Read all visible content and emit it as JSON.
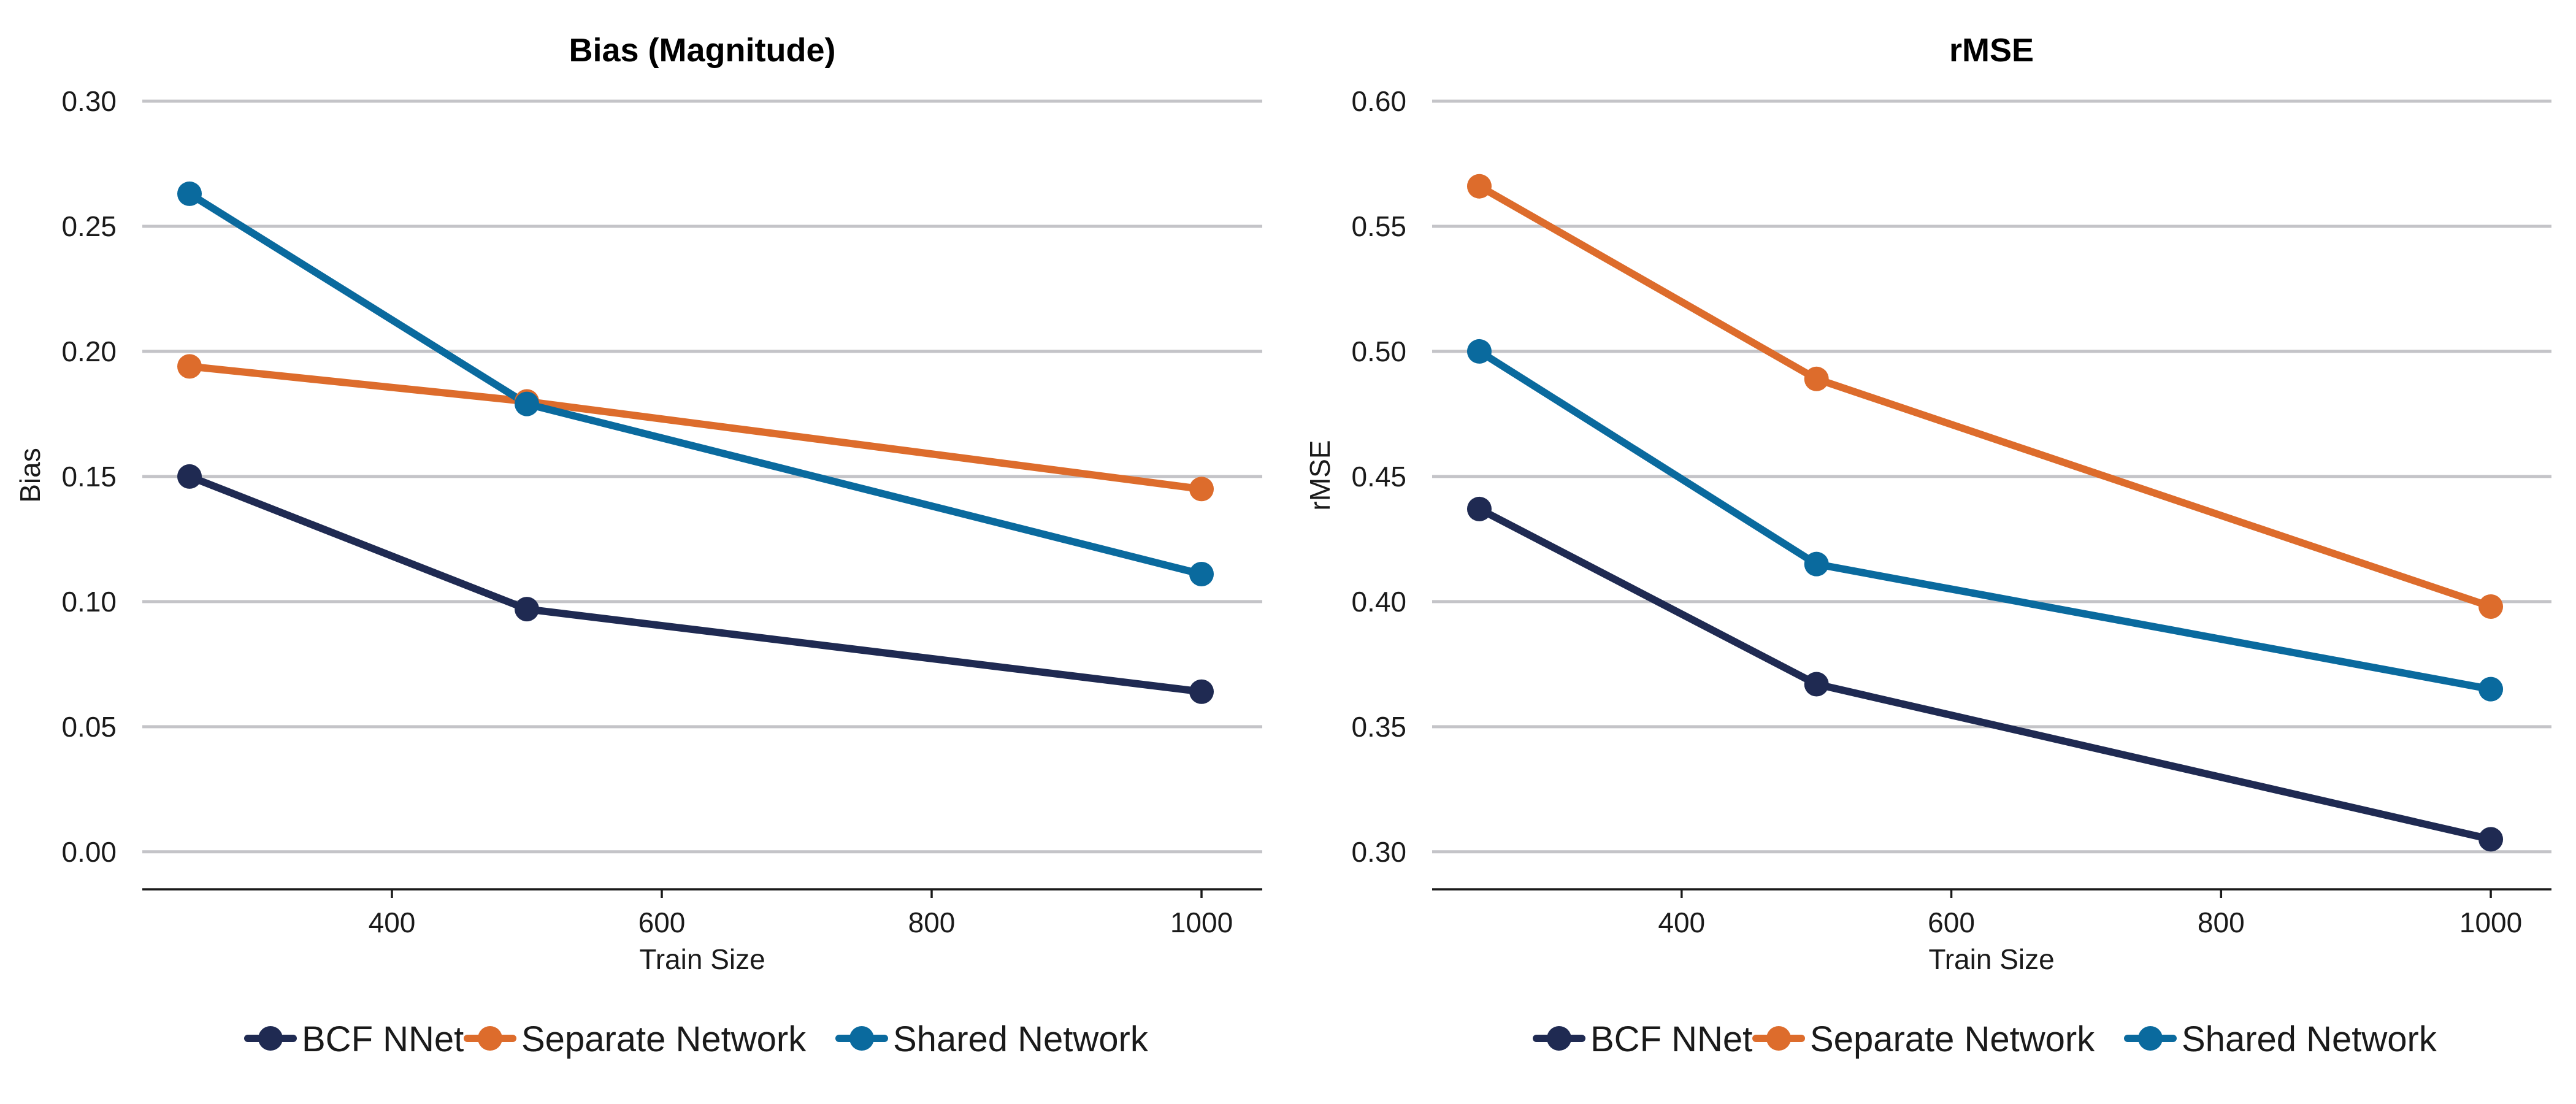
{
  "colors": {
    "BCF NNet": "#1f2a52",
    "Separate Network": "#dd6c2c",
    "Shared Network": "#0a6a9e"
  },
  "chart_data": [
    {
      "type": "line",
      "title": "Bias (Magnitude)",
      "xlabel": "Train Size",
      "ylabel": "Bias",
      "xlim": [
        215,
        1045
      ],
      "ylim": [
        -0.015,
        0.3
      ],
      "x_ticks": [
        400,
        600,
        800,
        1000
      ],
      "y_ticks": [
        0.0,
        0.05,
        0.1,
        0.15,
        0.2,
        0.25,
        0.3
      ],
      "y_tick_labels": [
        "0.00",
        "0.05",
        "0.10",
        "0.15",
        "0.20",
        "0.25",
        "0.30"
      ],
      "grid": "horizontal",
      "legend": "bottom",
      "x": [
        250,
        500,
        1000
      ],
      "series": [
        {
          "name": "BCF NNet",
          "values": [
            0.15,
            0.097,
            0.064
          ]
        },
        {
          "name": "Separate Network",
          "values": [
            0.194,
            0.18,
            0.145
          ]
        },
        {
          "name": "Shared Network",
          "values": [
            0.263,
            0.179,
            0.111
          ]
        }
      ]
    },
    {
      "type": "line",
      "title": "rMSE",
      "xlabel": "Train Size",
      "ylabel": "rMSE",
      "xlim": [
        215,
        1045
      ],
      "ylim": [
        0.285,
        0.6
      ],
      "x_ticks": [
        400,
        600,
        800,
        1000
      ],
      "y_ticks": [
        0.3,
        0.35,
        0.4,
        0.45,
        0.5,
        0.55,
        0.6
      ],
      "y_tick_labels": [
        "0.30",
        "0.35",
        "0.40",
        "0.45",
        "0.50",
        "0.55",
        "0.60"
      ],
      "grid": "horizontal",
      "legend": "bottom",
      "x": [
        250,
        500,
        1000
      ],
      "series": [
        {
          "name": "BCF NNet",
          "values": [
            0.437,
            0.367,
            0.305
          ]
        },
        {
          "name": "Separate Network",
          "values": [
            0.566,
            0.489,
            0.398
          ]
        },
        {
          "name": "Shared Network",
          "values": [
            0.5,
            0.415,
            0.365
          ]
        }
      ]
    }
  ]
}
